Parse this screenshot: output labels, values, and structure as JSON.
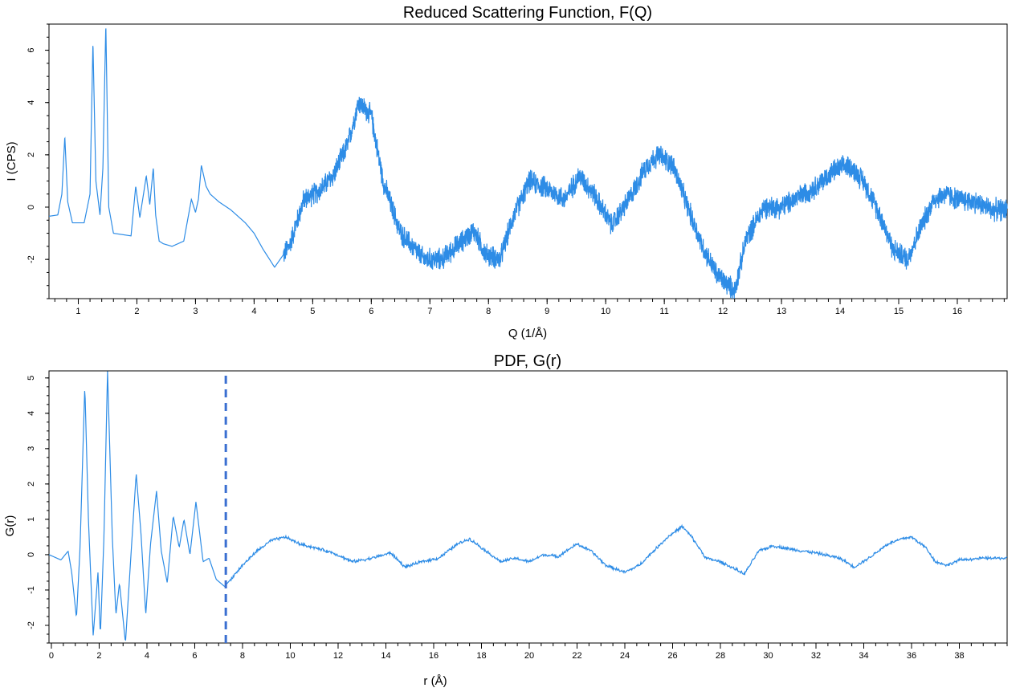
{
  "colors": {
    "line": "#2d8ce6",
    "dashed": "#3a6fd1",
    "frame": "#000000"
  },
  "chart_data": [
    {
      "type": "line",
      "title": "Reduced Scattering Function, F(Q)",
      "xlabel": "Q (1/Å)",
      "ylabel": "I (CPS)",
      "xlim": [
        0.5,
        16.85
      ],
      "ylim": [
        -3.5,
        7.0
      ],
      "xticks": [
        1,
        2,
        3,
        4,
        5,
        6,
        7,
        8,
        9,
        10,
        11,
        12,
        13,
        14,
        15,
        16
      ],
      "yticks": [
        -2,
        0,
        2,
        4,
        6
      ],
      "noise": {
        "start_x": 4.5,
        "amplitude": 0.5
      },
      "x": [
        0.5,
        0.65,
        0.72,
        0.77,
        0.82,
        0.9,
        1.1,
        1.2,
        1.25,
        1.3,
        1.37,
        1.42,
        1.47,
        1.52,
        1.6,
        1.9,
        1.98,
        2.05,
        2.12,
        2.16,
        2.22,
        2.28,
        2.32,
        2.38,
        2.45,
        2.6,
        2.8,
        2.93,
        3.0,
        3.05,
        3.1,
        3.18,
        3.25,
        3.4,
        3.6,
        3.85,
        4.0,
        4.15,
        4.35,
        4.6,
        4.85,
        5.1,
        5.35,
        5.6,
        5.78,
        6.0,
        6.2,
        6.5,
        6.9,
        7.2,
        7.5,
        7.75,
        7.95,
        8.2,
        8.4,
        8.7,
        9.0,
        9.3,
        9.55,
        9.8,
        10.1,
        10.4,
        10.7,
        10.9,
        11.15,
        11.4,
        11.65,
        11.9,
        12.2,
        12.4,
        12.7,
        13.0,
        13.3,
        13.6,
        13.9,
        14.15,
        14.4,
        14.7,
        14.9,
        15.15,
        15.35,
        15.6,
        15.8,
        16.0,
        16.3,
        16.6,
        16.85
      ],
      "y": [
        -0.35,
        -0.3,
        0.5,
        2.7,
        0.2,
        -0.6,
        -0.6,
        0.5,
        6.3,
        1.0,
        -0.3,
        1.5,
        7.0,
        0.0,
        -1.0,
        -1.1,
        0.8,
        -0.4,
        0.6,
        1.2,
        0.1,
        1.5,
        -0.3,
        -1.3,
        -1.4,
        -1.5,
        -1.3,
        0.3,
        -0.2,
        0.3,
        1.6,
        0.8,
        0.5,
        0.2,
        -0.1,
        -0.6,
        -1.0,
        -1.6,
        -2.3,
        -1.5,
        0.3,
        0.6,
        1.2,
        2.4,
        4.0,
        3.5,
        1.0,
        -1.0,
        -2.0,
        -2.0,
        -1.4,
        -0.9,
        -1.8,
        -2.0,
        -0.5,
        1.0,
        0.7,
        0.3,
        1.2,
        0.5,
        -0.7,
        0.3,
        1.6,
        2.0,
        1.6,
        0.0,
        -1.5,
        -2.6,
        -3.2,
        -1.2,
        0.0,
        0.0,
        0.4,
        0.8,
        1.4,
        1.6,
        1.0,
        -0.4,
        -1.6,
        -2.0,
        -0.9,
        0.3,
        0.5,
        0.3,
        0.2,
        -0.1,
        -0.1
      ]
    },
    {
      "type": "line",
      "title": "PDF, G(r)",
      "xlabel": "r (Å)",
      "ylabel": "G(r)",
      "xlim": [
        -0.1,
        40.0
      ],
      "ylim": [
        -2.5,
        5.2
      ],
      "xticks": [
        0,
        2,
        4,
        6,
        8,
        10,
        12,
        14,
        16,
        18,
        20,
        22,
        24,
        26,
        28,
        30,
        32,
        34,
        36,
        38
      ],
      "yticks": [
        -2,
        -1,
        0,
        1,
        2,
        3,
        4,
        5
      ],
      "noise": {
        "start_x": 7.5,
        "amplitude": 0.05
      },
      "reference_line_x": 7.3,
      "x": [
        -0.1,
        0.4,
        0.7,
        0.85,
        1.05,
        1.2,
        1.4,
        1.55,
        1.75,
        1.95,
        2.05,
        2.2,
        2.35,
        2.55,
        2.7,
        2.85,
        3.1,
        3.35,
        3.55,
        3.75,
        3.95,
        4.15,
        4.4,
        4.6,
        4.85,
        5.1,
        5.35,
        5.55,
        5.8,
        6.05,
        6.35,
        6.6,
        6.9,
        7.25,
        7.5,
        8.0,
        8.6,
        9.2,
        9.8,
        10.4,
        11.0,
        11.8,
        12.6,
        13.4,
        14.2,
        14.8,
        15.5,
        16.2,
        17.0,
        17.5,
        18.2,
        18.8,
        19.4,
        20.0,
        20.6,
        21.2,
        22.0,
        22.6,
        23.2,
        24.0,
        24.6,
        25.2,
        25.8,
        26.4,
        26.8,
        27.4,
        28.0,
        28.6,
        29.0,
        29.6,
        30.2,
        31.0,
        32.0,
        33.0,
        33.6,
        34.2,
        35.0,
        35.6,
        36.0,
        36.6,
        37.0,
        37.5,
        38.0,
        39.0,
        40.0
      ],
      "y": [
        0.0,
        -0.15,
        0.1,
        -0.5,
        -1.8,
        0.2,
        4.8,
        1.0,
        -2.3,
        -0.5,
        -2.3,
        0.5,
        5.2,
        0.5,
        -1.7,
        -0.8,
        -2.5,
        0.2,
        2.3,
        0.6,
        -1.7,
        0.3,
        1.8,
        0.1,
        -0.8,
        1.1,
        0.2,
        1.0,
        0.0,
        1.5,
        -0.2,
        -0.1,
        -0.7,
        -0.9,
        -0.7,
        -0.3,
        0.1,
        0.4,
        0.5,
        0.3,
        0.2,
        0.05,
        -0.2,
        -0.1,
        0.05,
        -0.35,
        -0.2,
        -0.1,
        0.3,
        0.45,
        0.1,
        -0.2,
        -0.1,
        -0.2,
        0.0,
        -0.05,
        0.3,
        0.1,
        -0.3,
        -0.5,
        -0.3,
        0.1,
        0.5,
        0.8,
        0.5,
        -0.1,
        -0.2,
        -0.4,
        -0.55,
        0.1,
        0.25,
        0.15,
        0.05,
        -0.1,
        -0.35,
        -0.1,
        0.3,
        0.45,
        0.5,
        0.2,
        -0.2,
        -0.3,
        -0.15,
        -0.1,
        -0.1
      ]
    }
  ]
}
